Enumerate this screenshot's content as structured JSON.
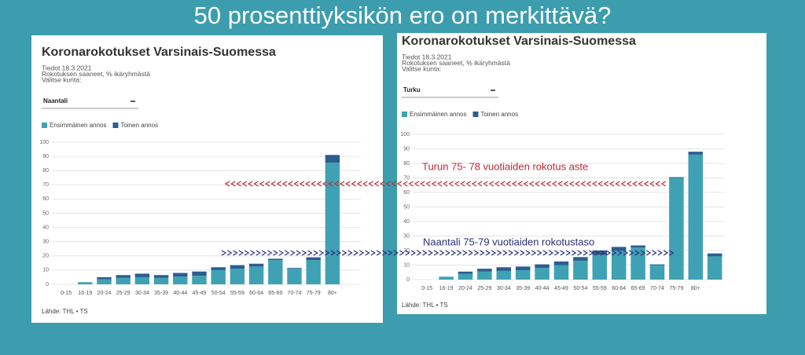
{
  "slide": {
    "title": "50 prosenttiyksikön ero on merkittävä?",
    "annotations": [
      "Turun 75- 78  vuotiaiden rokotus aste",
      "Naantali 75-79 vuotiaiden rokotustaso"
    ]
  },
  "chart_data": [
    {
      "type": "bar",
      "stacked": true,
      "title": "Koronarokotukset Varsinais-Suomessa",
      "subtitle": [
        "Tiedot 18.3.2021",
        "Rokotuksen saaneet, % ikäryhmästä",
        "Valitse kunta:"
      ],
      "selector": "Naantali",
      "categories": [
        "0-15",
        "16-19",
        "20-24",
        "25-29",
        "30-34",
        "35-39",
        "40-44",
        "45-49",
        "50-54",
        "55-59",
        "60-64",
        "65-69",
        "70-74",
        "75-79",
        "80+"
      ],
      "series": [
        {
          "name": "Ensimmäinen annos",
          "color": "#3fa2b4",
          "values": [
            0,
            1.5,
            3.5,
            4.5,
            5,
            4.5,
            5.5,
            6,
            10,
            11,
            12.5,
            17,
            11,
            17,
            85.5
          ]
        },
        {
          "name": "Toinen annos",
          "color": "#2c5d8f",
          "values": [
            0,
            0,
            1.5,
            2,
            2.5,
            2,
            2.5,
            3,
            2,
            2.5,
            2,
            1,
            0.5,
            2,
            5.5
          ]
        }
      ],
      "ylim": [
        0,
        100
      ],
      "yticks": [
        0,
        10,
        20,
        30,
        40,
        50,
        60,
        70,
        80,
        90,
        100
      ],
      "grid": true,
      "source": "Lähde: THL • TS"
    },
    {
      "type": "bar",
      "stacked": true,
      "title": "Koronarokotukset Varsinais-Suomessa",
      "subtitle": [
        "Tiedot 18.3.2021",
        "Rokotuksen saaneet, % ikäryhmästä",
        "Valitse kunta:"
      ],
      "selector": "Turku",
      "categories": [
        "0-15",
        "16-19",
        "20-24",
        "25-29",
        "30-34",
        "35-39",
        "40-44",
        "45-49",
        "50-54",
        "55-59",
        "60-64",
        "65-69",
        "70-74",
        "75-79",
        "80+",
        null
      ],
      "series": [
        {
          "name": "Ensimmäinen annos",
          "color": "#3fa2b4",
          "values": [
            0,
            2,
            4,
            5.5,
            6,
            6.5,
            8,
            10,
            13,
            17,
            20,
            22,
            10,
            70,
            86,
            16
          ]
        },
        {
          "name": "Toinen annos",
          "color": "#2c5d8f",
          "values": [
            0,
            0,
            1.5,
            2,
            2.5,
            2.5,
            2.5,
            2.5,
            2.5,
            3,
            2.5,
            1.5,
            0.5,
            0.5,
            2,
            2
          ]
        }
      ],
      "ylim": [
        0,
        100
      ],
      "yticks": [
        0,
        10,
        20,
        30,
        40,
        50,
        60,
        70,
        80,
        90,
        100
      ],
      "grid": true,
      "source": "Lähde: THL • TS"
    }
  ]
}
